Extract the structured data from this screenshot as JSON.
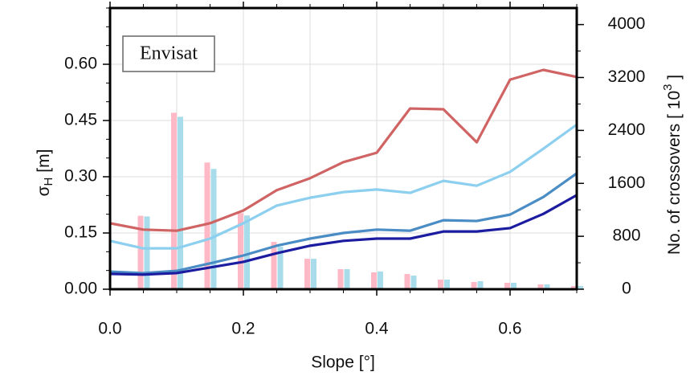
{
  "chart_data": {
    "type": "line-bar",
    "legend_text": "Envisat",
    "xlabel": "Slope [°]",
    "ylabel": {
      "symbol": "σ",
      "subscript": "H",
      "unit": " [m]"
    },
    "y2label": {
      "text": "No. of crossovers [ 10",
      "superscript": "3",
      "end": " ]"
    },
    "xlim": [
      0,
      0.7
    ],
    "ylim": [
      0,
      0.75
    ],
    "y2lim": [
      0,
      4250
    ],
    "xticks": [
      {
        "value": 0,
        "label": "0.0"
      },
      0.2,
      0.4,
      0.6
    ],
    "yticks": [
      {
        "value": 0,
        "label": "0.00"
      },
      {
        "value": 0.15,
        "label": "0.15"
      },
      {
        "value": 0.3,
        "label": "0.30"
      },
      {
        "value": 0.45,
        "label": "0.45"
      },
      {
        "value": 0.6,
        "label": "0.60"
      }
    ],
    "y2ticks": [
      0,
      800,
      1600,
      2400,
      3200,
      4000
    ],
    "grid": true,
    "x": [
      0,
      0.05,
      0.1,
      0.15,
      0.2,
      0.25,
      0.3,
      0.35,
      0.4,
      0.45,
      0.5,
      0.55,
      0.6,
      0.65,
      0.7
    ],
    "series": [
      {
        "color": "#d06464",
        "values": [
          0.176,
          0.159,
          0.156,
          0.176,
          0.21,
          0.264,
          0.296,
          0.339,
          0.364,
          0.482,
          0.48,
          0.392,
          0.559,
          0.585,
          0.566
        ]
      },
      {
        "color": "#8ccfee",
        "values": [
          0.129,
          0.109,
          0.109,
          0.135,
          0.176,
          0.223,
          0.244,
          0.259,
          0.266,
          0.257,
          0.289,
          0.276,
          0.313,
          0.375,
          0.439
        ]
      },
      {
        "color": "#4a8cc4",
        "values": [
          0.047,
          0.043,
          0.049,
          0.069,
          0.09,
          0.116,
          0.135,
          0.15,
          0.159,
          0.156,
          0.184,
          0.182,
          0.199,
          0.246,
          0.309
        ]
      },
      {
        "color": "#1c1ca0",
        "values": [
          0.041,
          0.039,
          0.043,
          0.058,
          0.073,
          0.096,
          0.116,
          0.129,
          0.135,
          0.135,
          0.154,
          0.154,
          0.163,
          0.201,
          0.251
        ]
      }
    ],
    "bar_x": [
      0.05,
      0.1,
      0.15,
      0.2,
      0.25,
      0.3,
      0.35,
      0.4,
      0.45,
      0.5,
      0.55,
      0.6,
      0.65,
      0.7
    ],
    "bar_series": [
      {
        "color": "#ffb8c6",
        "axis": "y2",
        "values": [
          1110,
          2667,
          1915,
          1150,
          715,
          460,
          303,
          255,
          230,
          145,
          109,
          97,
          73,
          48
        ]
      },
      {
        "color": "#a8dcea",
        "axis": "y2",
        "values": [
          1100,
          2606,
          1818,
          1115,
          642,
          460,
          303,
          267,
          206,
          145,
          121,
          97,
          73,
          48
        ]
      }
    ]
  }
}
